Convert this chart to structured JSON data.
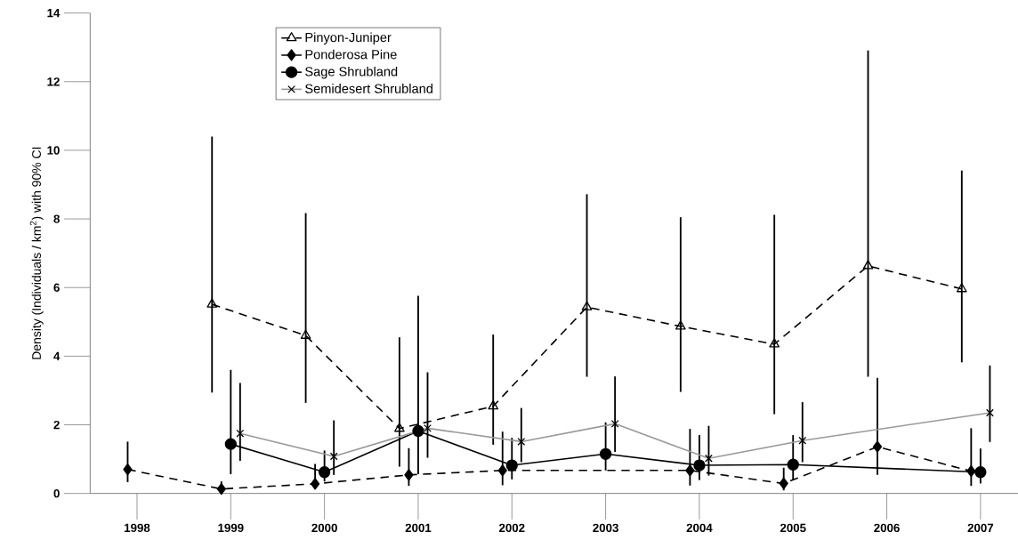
{
  "chart_data": {
    "type": "line",
    "ylabel": "Density (Individuals / km$^{2}$) with 90% CI",
    "xlim": [
      1997.5,
      2007.4
    ],
    "ylim": [
      0,
      14
    ],
    "xticks": [
      1998,
      1999,
      2000,
      2001,
      2002,
      2003,
      2004,
      2005,
      2006,
      2007
    ],
    "yticks": [
      0,
      2,
      4,
      6,
      8,
      10,
      12,
      14
    ],
    "legend": "top left",
    "series": [
      {
        "name": "Pinyon-Juniper",
        "color": "#000000",
        "marker": "triangle",
        "line_style": "dashed",
        "x": [
          1998.8,
          1999.8,
          2000.8,
          2001.8,
          2002.8,
          2003.8,
          2004.8,
          2005.8,
          2006.8
        ],
        "values": [
          5.51,
          4.6,
          1.89,
          2.54,
          5.43,
          4.87,
          4.35,
          6.63,
          5.96
        ],
        "errors": [
          [
            2.94,
            10.4
          ],
          [
            2.64,
            8.17
          ],
          [
            0.78,
            4.55
          ],
          [
            1.42,
            4.63
          ],
          [
            3.4,
            8.72
          ],
          [
            2.96,
            8.05
          ],
          [
            2.31,
            8.12
          ],
          [
            3.4,
            12.91
          ],
          [
            3.82,
            9.41
          ]
        ]
      },
      {
        "name": "Ponderosa Pine",
        "color": "#000000",
        "marker": "diamond",
        "line_style": "dashed",
        "x": [
          1997.9,
          1998.9,
          1999.9,
          2000.9,
          2001.9,
          2002.9,
          2003.9,
          2004.9,
          2005.9,
          2006.9
        ],
        "values": [
          0.7,
          0.13,
          0.28,
          0.54,
          0.67,
          null,
          0.67,
          0.29,
          1.36,
          0.65
        ],
        "errors": [
          [
            0.33,
            1.51
          ],
          [
            0.02,
            0.35
          ],
          [
            0.13,
            0.86
          ],
          [
            0.22,
            1.32
          ],
          [
            0.24,
            1.8
          ],
          null,
          [
            0.23,
            1.88
          ],
          [
            0.09,
            0.75
          ],
          [
            0.54,
            3.37
          ],
          [
            0.22,
            1.9
          ]
        ]
      },
      {
        "name": "Sage Shrubland",
        "color": "#000000",
        "marker": "circle",
        "line_style": "solid",
        "x": [
          1999,
          2000,
          2001,
          2002,
          2003,
          2004,
          2005,
          2006,
          2007
        ],
        "values": [
          1.44,
          0.62,
          1.82,
          0.82,
          1.15,
          0.82,
          0.84,
          null,
          0.62
        ],
        "errors": [
          [
            0.56,
            3.6
          ],
          [
            0.35,
            1.25
          ],
          [
            0.56,
            5.76
          ],
          [
            0.41,
            1.62
          ],
          [
            0.67,
            2.07
          ],
          [
            0.39,
            1.7
          ],
          [
            0.39,
            1.7
          ],
          null,
          [
            0.29,
            1.31
          ]
        ]
      },
      {
        "name": "Semidesert Shrubland",
        "color": "#999999",
        "marker": "cross",
        "line_style": "solid",
        "x": [
          1999.1,
          2000.1,
          2001.1,
          2002.1,
          2003.1,
          2004.1,
          2005.1,
          2006.1,
          2007.1
        ],
        "values": [
          1.75,
          1.08,
          1.9,
          1.51,
          2.03,
          1.02,
          1.54,
          null,
          2.35
        ],
        "errors": [
          [
            0.95,
            3.22
          ],
          [
            0.54,
            2.13
          ],
          [
            1.04,
            3.53
          ],
          [
            0.91,
            2.49
          ],
          [
            1.21,
            3.41
          ],
          [
            0.52,
            1.97
          ],
          [
            0.91,
            2.66
          ],
          null,
          [
            1.5,
            3.73
          ]
        ]
      }
    ]
  }
}
